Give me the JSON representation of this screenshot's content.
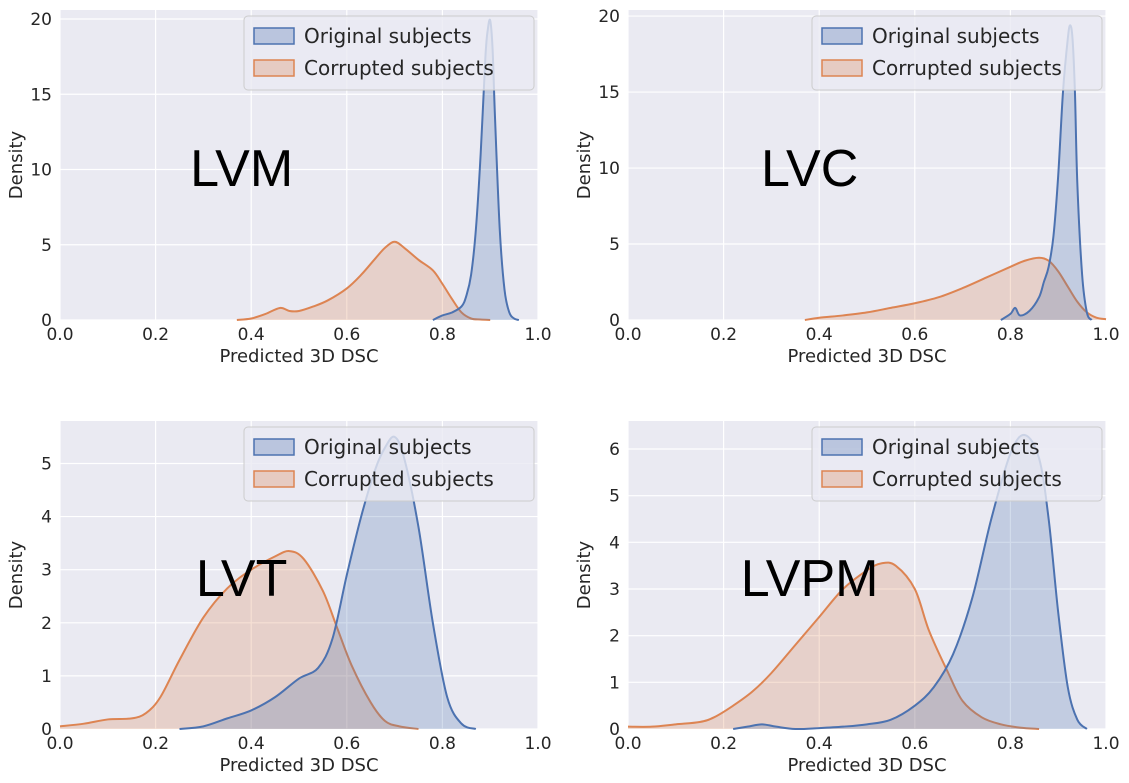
{
  "colors": {
    "background": "#eaeaf2",
    "grid": "#ffffff",
    "original": "#4c72b0",
    "corrupted": "#dd8452",
    "text": "#262626"
  },
  "chart_data": [
    {
      "type": "area",
      "panel_label": "LVM",
      "xlabel": "Predicted 3D DSC",
      "ylabel": "Density",
      "xlim": [
        0,
        1
      ],
      "ylim": [
        0,
        20.6
      ],
      "xticks": [
        0.0,
        0.2,
        0.4,
        0.6,
        0.8,
        1.0
      ],
      "yticks": [
        0,
        5,
        10,
        15,
        20
      ],
      "grid": true,
      "legend_position": "top-right",
      "series": [
        {
          "name": "Original subjects",
          "color": "#4c72b0",
          "x": [
            0.78,
            0.8,
            0.82,
            0.84,
            0.85,
            0.86,
            0.87,
            0.88,
            0.89,
            0.895,
            0.9,
            0.905,
            0.91,
            0.92,
            0.93,
            0.94,
            0.95,
            0.96
          ],
          "y": [
            0,
            0.3,
            0.5,
            0.9,
            1.6,
            3.0,
            6.0,
            11.0,
            17.5,
            19.3,
            19.9,
            18.0,
            13.5,
            6.0,
            2.0,
            0.5,
            0.1,
            0
          ]
        },
        {
          "name": "Corrupted subjects",
          "color": "#dd8452",
          "x": [
            0.37,
            0.4,
            0.43,
            0.46,
            0.48,
            0.5,
            0.53,
            0.56,
            0.6,
            0.63,
            0.66,
            0.68,
            0.7,
            0.72,
            0.75,
            0.78,
            0.8,
            0.82,
            0.84,
            0.86,
            0.88,
            0.9
          ],
          "y": [
            0,
            0.1,
            0.4,
            0.8,
            0.6,
            0.6,
            0.9,
            1.3,
            2.1,
            3.0,
            4.1,
            4.8,
            5.2,
            4.8,
            4.0,
            3.3,
            2.4,
            1.4,
            0.5,
            0.1,
            0.03,
            0
          ]
        }
      ]
    },
    {
      "type": "area",
      "panel_label": "LVC",
      "xlabel": "Predicted 3D DSC",
      "ylabel": "Density",
      "xlim": [
        0,
        1
      ],
      "ylim": [
        0,
        20.4
      ],
      "xticks": [
        0.0,
        0.2,
        0.4,
        0.6,
        0.8,
        1.0
      ],
      "yticks": [
        0,
        5,
        10,
        15,
        20
      ],
      "grid": true,
      "legend_position": "top-right",
      "series": [
        {
          "name": "Original subjects",
          "color": "#4c72b0",
          "x": [
            0.78,
            0.8,
            0.81,
            0.82,
            0.84,
            0.86,
            0.87,
            0.88,
            0.89,
            0.9,
            0.91,
            0.92,
            0.925,
            0.93,
            0.935,
            0.94,
            0.95,
            0.96,
            0.97
          ],
          "y": [
            0,
            0.4,
            0.8,
            0.3,
            0.6,
            1.5,
            2.5,
            3.5,
            5.5,
            9.5,
            15.0,
            18.5,
            19.4,
            18.5,
            15.0,
            9.0,
            3.0,
            0.5,
            0
          ]
        },
        {
          "name": "Corrupted subjects",
          "color": "#dd8452",
          "x": [
            0.37,
            0.4,
            0.45,
            0.5,
            0.55,
            0.6,
            0.65,
            0.7,
            0.75,
            0.8,
            0.83,
            0.86,
            0.88,
            0.9,
            0.92,
            0.94,
            0.96,
            0.98,
            1.0
          ],
          "y": [
            0,
            0.15,
            0.3,
            0.5,
            0.8,
            1.1,
            1.5,
            2.1,
            2.8,
            3.5,
            3.9,
            4.1,
            3.9,
            3.2,
            2.2,
            1.2,
            0.5,
            0.15,
            0.05
          ]
        }
      ]
    },
    {
      "type": "area",
      "panel_label": "LVT",
      "xlabel": "Predicted 3D DSC",
      "ylabel": "Density",
      "xlim": [
        0,
        1
      ],
      "ylim": [
        0,
        5.8
      ],
      "xticks": [
        0.0,
        0.2,
        0.4,
        0.6,
        0.8,
        1.0
      ],
      "yticks": [
        0,
        1,
        2,
        3,
        4,
        5
      ],
      "grid": true,
      "legend_position": "top-right",
      "series": [
        {
          "name": "Original subjects",
          "color": "#4c72b0",
          "x": [
            0.25,
            0.3,
            0.35,
            0.4,
            0.45,
            0.5,
            0.54,
            0.57,
            0.6,
            0.63,
            0.66,
            0.68,
            0.7,
            0.72,
            0.75,
            0.78,
            0.81,
            0.84,
            0.87
          ],
          "y": [
            0,
            0.05,
            0.2,
            0.35,
            0.6,
            0.95,
            1.15,
            1.7,
            2.9,
            4.0,
            4.9,
            5.3,
            5.5,
            5.1,
            3.8,
            2.0,
            0.6,
            0.1,
            0
          ]
        },
        {
          "name": "Corrupted subjects",
          "color": "#dd8452",
          "x": [
            0.0,
            0.05,
            0.1,
            0.15,
            0.18,
            0.21,
            0.25,
            0.3,
            0.35,
            0.4,
            0.45,
            0.48,
            0.51,
            0.55,
            0.58,
            0.61,
            0.65,
            0.68,
            0.71,
            0.75
          ],
          "y": [
            0.05,
            0.1,
            0.18,
            0.2,
            0.3,
            0.6,
            1.3,
            2.1,
            2.65,
            3.0,
            3.25,
            3.35,
            3.2,
            2.6,
            1.9,
            1.2,
            0.5,
            0.15,
            0.05,
            0
          ]
        }
      ]
    },
    {
      "type": "area",
      "panel_label": "LVPM",
      "xlabel": "Predicted 3D DSC",
      "ylabel": "Density",
      "xlim": [
        0,
        1
      ],
      "ylim": [
        0,
        6.6
      ],
      "xticks": [
        0.0,
        0.2,
        0.4,
        0.6,
        0.8,
        1.0
      ],
      "yticks": [
        0,
        1,
        2,
        3,
        4,
        5,
        6
      ],
      "grid": true,
      "legend_position": "top-right",
      "series": [
        {
          "name": "Original subjects",
          "color": "#4c72b0",
          "x": [
            0.22,
            0.25,
            0.28,
            0.31,
            0.35,
            0.4,
            0.45,
            0.5,
            0.55,
            0.6,
            0.64,
            0.68,
            0.72,
            0.76,
            0.8,
            0.83,
            0.86,
            0.88,
            0.9,
            0.92,
            0.94,
            0.96
          ],
          "y": [
            0,
            0.05,
            0.1,
            0.05,
            0,
            0.02,
            0.05,
            0.1,
            0.2,
            0.5,
            0.9,
            1.6,
            2.8,
            4.5,
            5.9,
            6.3,
            5.8,
            4.5,
            2.5,
            0.9,
            0.2,
            0
          ]
        },
        {
          "name": "Corrupted subjects",
          "color": "#dd8452",
          "x": [
            0.0,
            0.05,
            0.1,
            0.15,
            0.18,
            0.22,
            0.26,
            0.3,
            0.35,
            0.4,
            0.45,
            0.5,
            0.53,
            0.56,
            0.6,
            0.63,
            0.67,
            0.7,
            0.74,
            0.78,
            0.82,
            0.86
          ],
          "y": [
            0.05,
            0.05,
            0.1,
            0.15,
            0.25,
            0.5,
            0.8,
            1.2,
            1.8,
            2.4,
            3.0,
            3.4,
            3.55,
            3.5,
            3.0,
            2.1,
            1.2,
            0.6,
            0.25,
            0.1,
            0.03,
            0
          ]
        }
      ]
    }
  ]
}
